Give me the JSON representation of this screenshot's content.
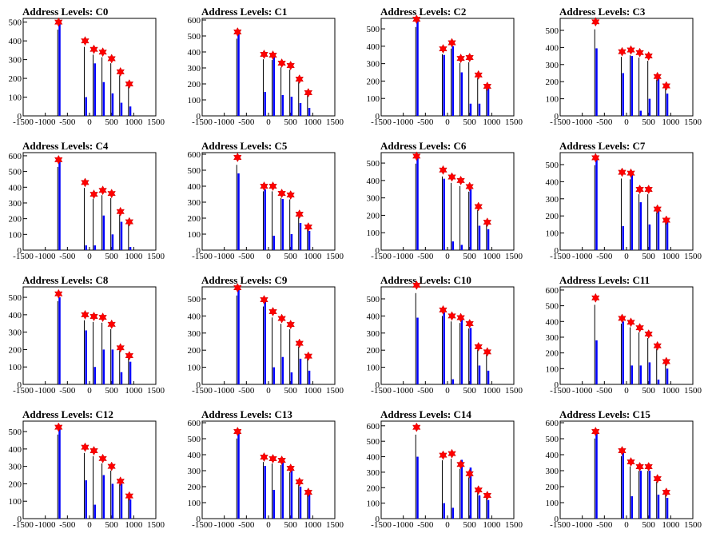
{
  "chart_data": [
    {
      "type": "bar",
      "title": "Address Levels: C0",
      "ylim": [
        0,
        520
      ],
      "yticks": [
        0,
        100,
        200,
        300,
        400,
        500
      ],
      "x": [
        -700,
        -100,
        100,
        300,
        500,
        700,
        900
      ],
      "tops": [
        500,
        400,
        355,
        340,
        305,
        235,
        170
      ],
      "blue": [
        500,
        100,
        280,
        180,
        120,
        70,
        50
      ]
    },
    {
      "type": "bar",
      "title": "Address Levels: C1",
      "ylim": [
        0,
        610
      ],
      "yticks": [
        0,
        100,
        200,
        300,
        400,
        500,
        600
      ],
      "x": [
        -700,
        -100,
        100,
        300,
        500,
        700,
        900
      ],
      "tops": [
        525,
        385,
        380,
        330,
        315,
        230,
        145
      ],
      "blue": [
        520,
        150,
        370,
        130,
        120,
        80,
        50
      ]
    },
    {
      "type": "bar",
      "title": "Address Levels: C2",
      "ylim": [
        0,
        560
      ],
      "yticks": [
        0,
        100,
        200,
        300,
        400,
        500
      ],
      "x": [
        -700,
        -100,
        100,
        300,
        500,
        700,
        900
      ],
      "tops": [
        555,
        385,
        420,
        330,
        335,
        235,
        170
      ],
      "blue": [
        555,
        350,
        400,
        250,
        70,
        70,
        160
      ]
    },
    {
      "type": "bar",
      "title": "Address Levels: C3",
      "ylim": [
        0,
        570
      ],
      "yticks": [
        0,
        100,
        200,
        300,
        400,
        500
      ],
      "x": [
        -700,
        -100,
        100,
        300,
        500,
        700,
        900
      ],
      "tops": [
        550,
        375,
        385,
        370,
        350,
        230,
        175
      ],
      "blue": [
        395,
        250,
        350,
        30,
        100,
        220,
        130
      ]
    },
    {
      "type": "bar",
      "title": "Address Levels: C4",
      "ylim": [
        0,
        620
      ],
      "yticks": [
        0,
        100,
        200,
        300,
        400,
        500,
        600
      ],
      "x": [
        -700,
        -100,
        100,
        300,
        500,
        700,
        900
      ],
      "tops": [
        575,
        430,
        355,
        380,
        360,
        245,
        180
      ],
      "blue": [
        570,
        30,
        30,
        220,
        100,
        180,
        20
      ]
    },
    {
      "type": "bar",
      "title": "Address Levels: C5",
      "ylim": [
        0,
        610
      ],
      "yticks": [
        0,
        100,
        200,
        300,
        400,
        500,
        600
      ],
      "x": [
        -700,
        -100,
        100,
        300,
        500,
        700,
        900
      ],
      "tops": [
        580,
        400,
        400,
        355,
        345,
        225,
        145
      ],
      "blue": [
        480,
        380,
        90,
        320,
        100,
        170,
        120
      ]
    },
    {
      "type": "bar",
      "title": "Address Levels: C6",
      "ylim": [
        0,
        560
      ],
      "yticks": [
        0,
        100,
        200,
        300,
        400,
        500
      ],
      "x": [
        -700,
        -100,
        100,
        300,
        500,
        700,
        900
      ],
      "tops": [
        540,
        460,
        420,
        400,
        365,
        250,
        160
      ],
      "blue": [
        540,
        410,
        50,
        30,
        350,
        140,
        120
      ]
    },
    {
      "type": "bar",
      "title": "Address Levels: C7",
      "ylim": [
        0,
        570
      ],
      "yticks": [
        0,
        100,
        200,
        300,
        400,
        500
      ],
      "x": [
        -700,
        -100,
        100,
        300,
        500,
        700,
        900
      ],
      "tops": [
        540,
        455,
        450,
        355,
        355,
        240,
        175
      ],
      "blue": [
        540,
        140,
        450,
        280,
        150,
        240,
        170
      ]
    },
    {
      "type": "bar",
      "title": "Address Levels: C8",
      "ylim": [
        0,
        560
      ],
      "yticks": [
        0,
        100,
        200,
        300,
        400,
        500
      ],
      "x": [
        -700,
        -100,
        100,
        300,
        500,
        700,
        900
      ],
      "tops": [
        520,
        400,
        390,
        385,
        345,
        210,
        165
      ],
      "blue": [
        500,
        310,
        100,
        200,
        200,
        70,
        130
      ]
    },
    {
      "type": "bar",
      "title": "Address Levels: C9",
      "ylim": [
        0,
        570
      ],
      "yticks": [
        0,
        100,
        200,
        300,
        400,
        500
      ],
      "x": [
        -700,
        -100,
        100,
        300,
        500,
        700,
        900
      ],
      "tops": [
        565,
        495,
        425,
        385,
        350,
        240,
        165
      ],
      "blue": [
        565,
        490,
        100,
        160,
        70,
        150,
        80
      ]
    },
    {
      "type": "bar",
      "title": "Address Levels: C10",
      "ylim": [
        0,
        570
      ],
      "yticks": [
        0,
        100,
        200,
        300,
        400,
        500
      ],
      "x": [
        -700,
        -100,
        100,
        300,
        500,
        700,
        900
      ],
      "tops": [
        580,
        435,
        400,
        390,
        355,
        220,
        190
      ],
      "blue": [
        390,
        420,
        30,
        380,
        330,
        110,
        80
      ]
    },
    {
      "type": "bar",
      "title": "Address Levels: C11",
      "ylim": [
        0,
        620
      ],
      "yticks": [
        0,
        100,
        200,
        300,
        400,
        500,
        600
      ],
      "x": [
        -700,
        -100,
        100,
        300,
        500,
        700,
        900
      ],
      "tops": [
        550,
        420,
        395,
        360,
        320,
        245,
        145
      ],
      "blue": [
        280,
        400,
        120,
        120,
        140,
        30,
        100
      ]
    },
    {
      "type": "bar",
      "title": "Address Levels: C12",
      "ylim": [
        0,
        560
      ],
      "yticks": [
        0,
        100,
        200,
        300,
        400,
        500
      ],
      "x": [
        -700,
        -100,
        100,
        300,
        500,
        700,
        900
      ],
      "tops": [
        525,
        410,
        390,
        345,
        300,
        215,
        130
      ],
      "blue": [
        520,
        220,
        80,
        250,
        200,
        200,
        110
      ]
    },
    {
      "type": "bar",
      "title": "Address Levels: C13",
      "ylim": [
        0,
        610
      ],
      "yticks": [
        0,
        100,
        200,
        300,
        400,
        500,
        600
      ],
      "x": [
        -700,
        -100,
        100,
        300,
        500,
        700,
        900
      ],
      "tops": [
        545,
        385,
        375,
        365,
        315,
        230,
        165
      ],
      "blue": [
        540,
        330,
        180,
        350,
        300,
        200,
        150
      ]
    },
    {
      "type": "bar",
      "title": "Address Levels: C14",
      "ylim": [
        0,
        630
      ],
      "yticks": [
        0,
        100,
        200,
        300,
        400,
        500,
        600
      ],
      "x": [
        -700,
        -100,
        100,
        300,
        500,
        700,
        900
      ],
      "tops": [
        590,
        410,
        420,
        350,
        290,
        185,
        150
      ],
      "blue": [
        400,
        100,
        70,
        380,
        330,
        150,
        120
      ]
    },
    {
      "type": "bar",
      "title": "Address Levels: C15",
      "ylim": [
        0,
        610
      ],
      "yticks": [
        0,
        100,
        200,
        300,
        400,
        500,
        600
      ],
      "x": [
        -700,
        -100,
        100,
        300,
        500,
        700,
        900
      ],
      "tops": [
        545,
        425,
        355,
        325,
        325,
        250,
        165
      ],
      "blue": [
        545,
        410,
        140,
        300,
        300,
        150,
        130
      ]
    }
  ],
  "xlim": [
    -1500,
    1500
  ],
  "xticks": [
    -1500,
    -1000,
    -500,
    0,
    500,
    1000,
    1500
  ],
  "colors": {
    "bar": "#0000ff",
    "marker": "#ff0000",
    "line": "#000000"
  }
}
